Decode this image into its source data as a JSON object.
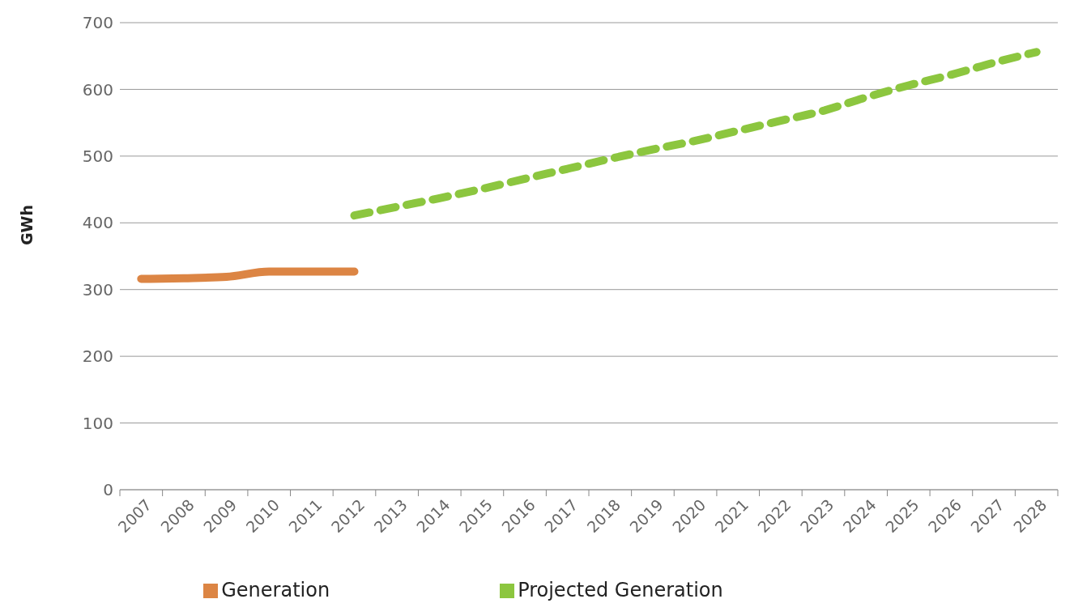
{
  "chart_data": {
    "type": "line",
    "ylabel": "GWh",
    "categories": [
      "2007",
      "2008",
      "2009",
      "2010",
      "2011",
      "2012",
      "2013",
      "2014",
      "2015",
      "2016",
      "2017",
      "2018",
      "2019",
      "2020",
      "2021",
      "2022",
      "2023",
      "2024",
      "2025",
      "2026",
      "2027",
      "2028"
    ],
    "series": [
      {
        "name": "Generation",
        "color": "#dc8544",
        "line_style": "solid",
        "values": [
          316,
          317,
          319,
          327,
          327,
          327,
          null,
          null,
          null,
          null,
          null,
          null,
          null,
          null,
          null,
          null,
          null,
          null,
          null,
          null,
          null,
          null
        ]
      },
      {
        "name": "Projected Generation",
        "color": "#8cc63f",
        "line_style": "dashed",
        "values": [
          null,
          null,
          null,
          null,
          null,
          411,
          424,
          437,
          451,
          466,
          481,
          496,
          510,
          523,
          538,
          553,
          568,
          588,
          606,
          622,
          640,
          656
        ]
      }
    ],
    "ylim": [
      0,
      700
    ],
    "yticks": [
      0,
      100,
      200,
      300,
      400,
      500,
      600,
      700
    ],
    "grid": "y",
    "legend": "bottom",
    "marker": "none"
  }
}
